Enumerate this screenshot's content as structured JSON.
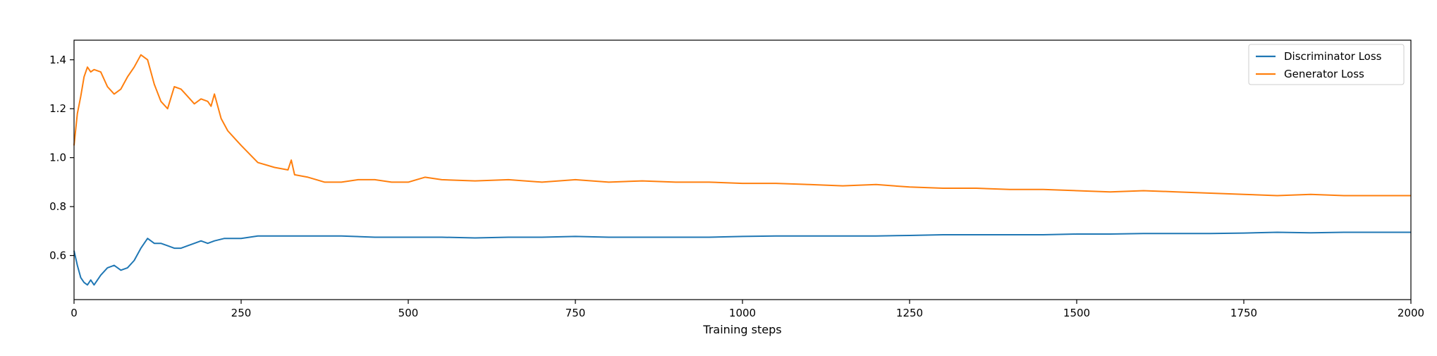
{
  "chart_data": {
    "type": "line",
    "title": "",
    "xlabel": "Training steps",
    "ylabel": "",
    "xlim": [
      0,
      2000
    ],
    "ylim": [
      0.42,
      1.48
    ],
    "xticks": [
      0,
      250,
      500,
      750,
      1000,
      1250,
      1500,
      1750,
      2000
    ],
    "xtick_labels": [
      "0",
      "250",
      "500",
      "750",
      "1000",
      "1250",
      "1500",
      "1750",
      "2000"
    ],
    "yticks": [
      0.6,
      0.8,
      1.0,
      1.2,
      1.4
    ],
    "ytick_labels": [
      "0.6",
      "0.8",
      "1.0",
      "1.2",
      "1.4"
    ],
    "grid": false,
    "legend_position": "top-right",
    "series": [
      {
        "name": "Discriminator Loss",
        "color": "#1f77b4",
        "x": [
          0,
          5,
          10,
          15,
          20,
          25,
          30,
          40,
          50,
          60,
          70,
          80,
          90,
          100,
          110,
          120,
          130,
          140,
          150,
          160,
          170,
          180,
          190,
          200,
          210,
          225,
          250,
          275,
          300,
          350,
          400,
          450,
          500,
          550,
          600,
          650,
          700,
          750,
          800,
          850,
          900,
          950,
          1000,
          1050,
          1100,
          1150,
          1200,
          1250,
          1300,
          1350,
          1400,
          1450,
          1500,
          1550,
          1600,
          1650,
          1700,
          1750,
          1800,
          1850,
          1900,
          1950,
          2000
        ],
        "y": [
          0.62,
          0.56,
          0.51,
          0.49,
          0.48,
          0.5,
          0.48,
          0.52,
          0.55,
          0.56,
          0.54,
          0.55,
          0.58,
          0.63,
          0.67,
          0.65,
          0.65,
          0.64,
          0.63,
          0.63,
          0.64,
          0.65,
          0.66,
          0.65,
          0.66,
          0.67,
          0.67,
          0.68,
          0.68,
          0.68,
          0.68,
          0.675,
          0.675,
          0.675,
          0.672,
          0.675,
          0.675,
          0.678,
          0.675,
          0.675,
          0.675,
          0.675,
          0.678,
          0.68,
          0.68,
          0.68,
          0.68,
          0.682,
          0.685,
          0.685,
          0.685,
          0.685,
          0.688,
          0.688,
          0.69,
          0.69,
          0.69,
          0.692,
          0.695,
          0.693,
          0.695,
          0.695,
          0.695
        ]
      },
      {
        "name": "Generator Loss",
        "color": "#ff7f0e",
        "x": [
          0,
          5,
          10,
          15,
          20,
          25,
          30,
          40,
          50,
          60,
          70,
          80,
          90,
          100,
          110,
          120,
          130,
          140,
          150,
          160,
          170,
          180,
          190,
          200,
          205,
          210,
          220,
          230,
          240,
          250,
          275,
          300,
          320,
          325,
          330,
          350,
          375,
          400,
          425,
          450,
          475,
          500,
          525,
          550,
          600,
          650,
          700,
          750,
          800,
          850,
          900,
          950,
          1000,
          1050,
          1100,
          1150,
          1200,
          1250,
          1300,
          1350,
          1400,
          1450,
          1500,
          1550,
          1600,
          1650,
          1700,
          1750,
          1800,
          1850,
          1900,
          1950,
          2000
        ],
        "y": [
          1.05,
          1.18,
          1.25,
          1.33,
          1.37,
          1.35,
          1.36,
          1.35,
          1.29,
          1.26,
          1.28,
          1.33,
          1.37,
          1.42,
          1.4,
          1.3,
          1.23,
          1.2,
          1.29,
          1.28,
          1.25,
          1.22,
          1.24,
          1.23,
          1.21,
          1.26,
          1.16,
          1.11,
          1.08,
          1.05,
          0.98,
          0.96,
          0.95,
          0.99,
          0.93,
          0.92,
          0.9,
          0.9,
          0.91,
          0.91,
          0.9,
          0.9,
          0.92,
          0.91,
          0.905,
          0.91,
          0.9,
          0.91,
          0.9,
          0.905,
          0.9,
          0.9,
          0.895,
          0.895,
          0.89,
          0.885,
          0.89,
          0.88,
          0.875,
          0.875,
          0.87,
          0.87,
          0.865,
          0.86,
          0.865,
          0.86,
          0.855,
          0.85,
          0.845,
          0.85,
          0.845,
          0.845,
          0.845
        ]
      }
    ]
  }
}
